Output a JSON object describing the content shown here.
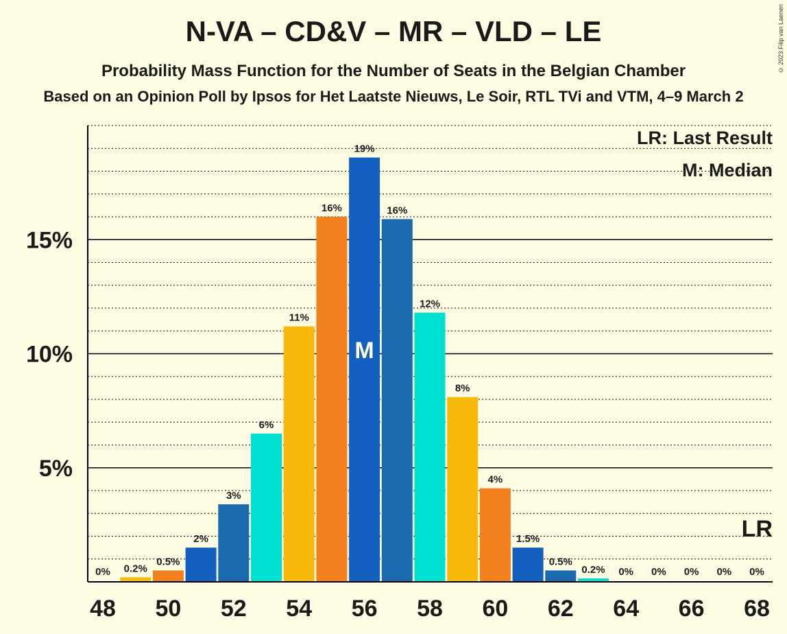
{
  "title": "N-VA – CD&V – MR – VLD – LE",
  "subtitle": "Probability Mass Function for the Number of Seats in the Belgian Chamber",
  "source": "Based on an Opinion Poll by Ipsos for Het Laatste Nieuws, Le Soir, RTL TVi and VTM, 4–9 March 2",
  "copyright": "© 2023 Filip van Laenen",
  "legend": {
    "last_result": "LR: Last Result",
    "median": "M: Median"
  },
  "colors": {
    "background": "#fefde4",
    "cycle": [
      "#00e0d0",
      "#f9b90b",
      "#f3801e",
      "#1460c0",
      "#1a6aad"
    ]
  },
  "chart_data": {
    "type": "bar",
    "x": [
      48,
      49,
      50,
      51,
      52,
      53,
      54,
      55,
      56,
      57,
      58,
      59,
      60,
      61,
      62,
      63,
      64,
      65,
      66,
      67,
      68
    ],
    "values": [
      0,
      0.2,
      0.5,
      1.5,
      3.4,
      6.5,
      11.2,
      16.0,
      18.6,
      15.9,
      11.8,
      8.1,
      4.1,
      1.5,
      0.5,
      0.15,
      0,
      0,
      0,
      0,
      0
    ],
    "data_labels": [
      "0%",
      "0.2%",
      "0.5%",
      "2%",
      "3%",
      "6%",
      "11%",
      "16%",
      "19%",
      "16%",
      "12%",
      "8%",
      "4%",
      "1.5%",
      "0.5%",
      "0.2%",
      "0%",
      "0%",
      "0%",
      "0%",
      "0%"
    ],
    "x_tick_labels": [
      "48",
      "50",
      "52",
      "54",
      "56",
      "58",
      "60",
      "62",
      "64",
      "66",
      "68"
    ],
    "y_tick_labels": [
      "5%",
      "10%",
      "15%"
    ],
    "y_ticks": [
      5,
      10,
      15
    ],
    "ylim": [
      0,
      20
    ],
    "median": 56,
    "median_label": "M",
    "last_result": 68,
    "last_result_label": "LR",
    "grid": true,
    "legend_position": "top-right"
  }
}
